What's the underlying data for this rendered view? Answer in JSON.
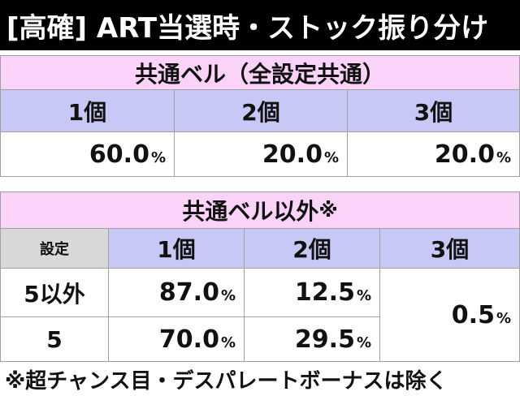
{
  "title": "[高確] ART当選時・ストック振り分け",
  "table1": {
    "title": "共通ベル（全設定共通）",
    "header": [
      "1個",
      "2個",
      "3個"
    ],
    "rows": [
      [
        {
          "value": "60.0",
          "unit": "%"
        },
        {
          "value": "20.0",
          "unit": "%"
        },
        {
          "value": "20.0",
          "unit": "%"
        }
      ]
    ]
  },
  "table2": {
    "title": "共通ベル以外",
    "title_mark": "※",
    "header": [
      "設定",
      "1個",
      "2個",
      "3個"
    ],
    "rows": [
      [
        "5以外",
        {
          "value": "87.0",
          "unit": "%"
        },
        {
          "value": "12.5",
          "unit": "%"
        }
      ],
      [
        "5",
        {
          "value": "70.0",
          "unit": "%"
        },
        {
          "value": "29.5",
          "unit": "%"
        }
      ]
    ],
    "merged": {
      "value": "0.5",
      "unit": "%"
    }
  },
  "footnote": "※超チャンス目・デスパレートボーナスは除く"
}
